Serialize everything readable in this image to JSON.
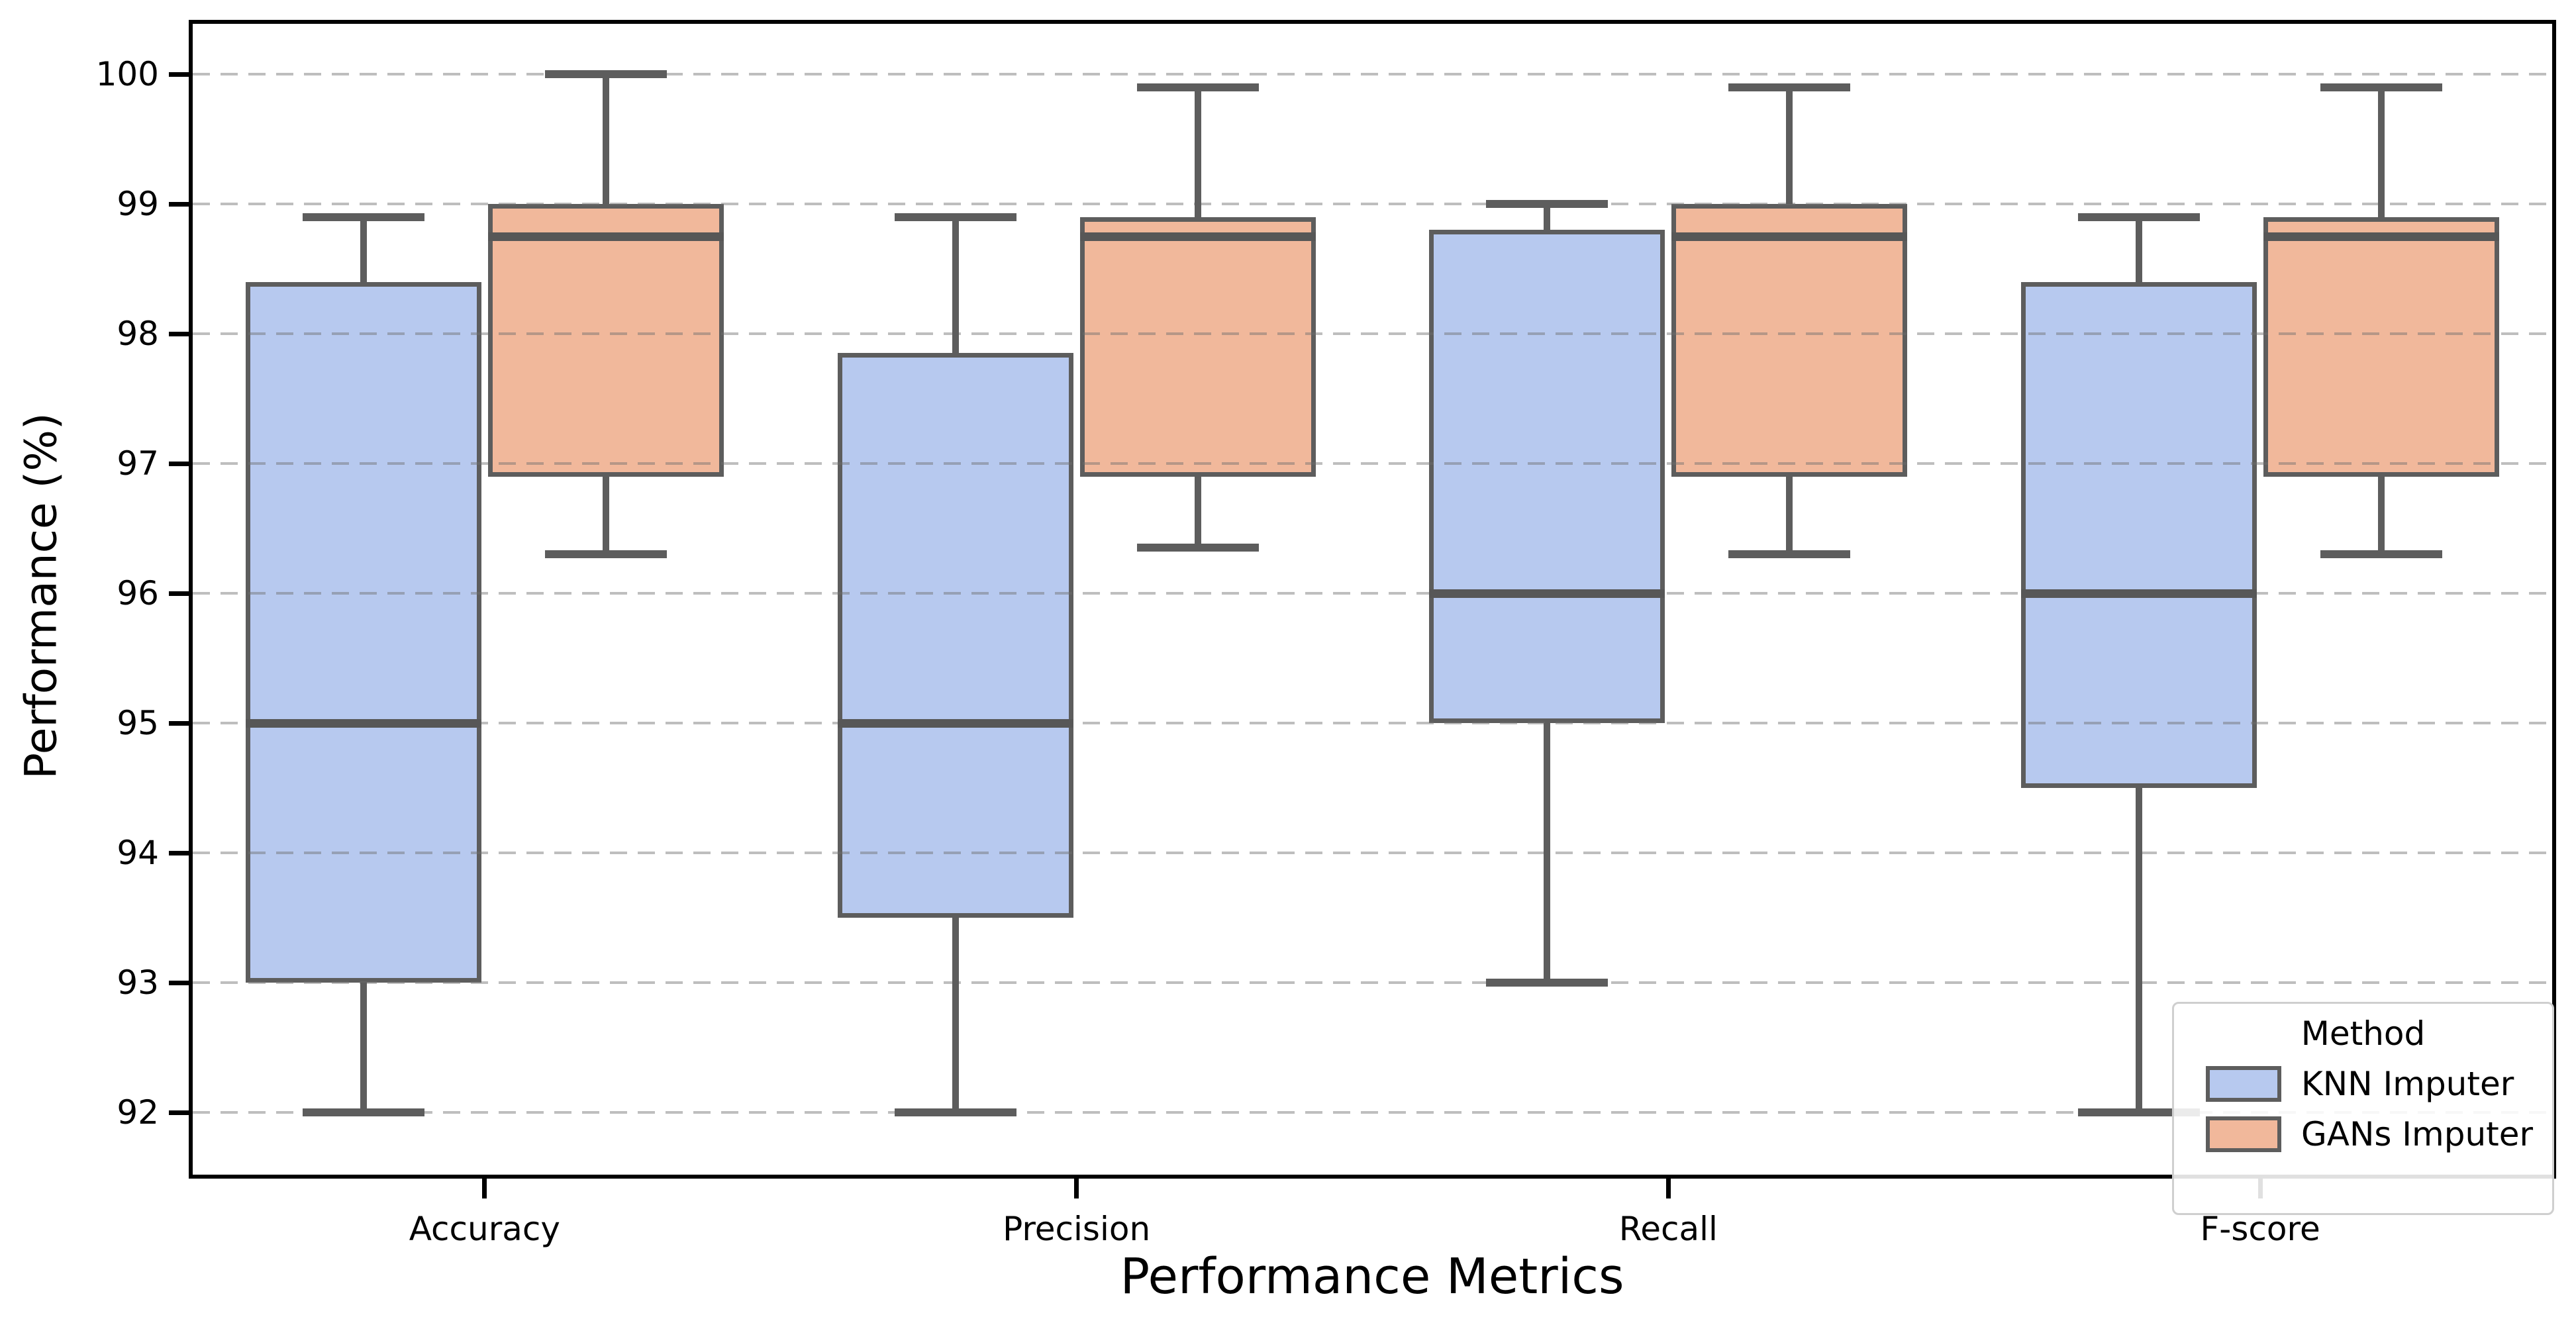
{
  "chart_data": {
    "type": "box",
    "title": "",
    "xlabel": "Performance Metrics",
    "ylabel": "Performance (%)",
    "categories": [
      "Accuracy",
      "Precision",
      "Recall",
      "F-score"
    ],
    "yticks": [
      100,
      99,
      98,
      97,
      96,
      95,
      94,
      93,
      92
    ],
    "ylim": [
      91.49,
      100.42
    ],
    "grid": "horizontal-dashed",
    "legend": {
      "title": "Method",
      "position": "lower right",
      "entries": [
        {
          "label": "KNN Imputer",
          "color": "#b7c9ef"
        },
        {
          "label": "GANs Imputer",
          "color": "#f1b89b"
        }
      ]
    },
    "series": [
      {
        "name": "KNN Imputer",
        "color": "#b7c9ef",
        "boxes": [
          {
            "category": "Accuracy",
            "whislo": 92.0,
            "q1": 93.0,
            "med": 95.0,
            "q3": 98.4,
            "whishi": 98.9
          },
          {
            "category": "Precision",
            "whislo": 92.0,
            "q1": 93.5,
            "med": 95.0,
            "q3": 97.85,
            "whishi": 98.9
          },
          {
            "category": "Recall",
            "whislo": 93.0,
            "q1": 95.0,
            "med": 96.0,
            "q3": 98.8,
            "whishi": 99.0
          },
          {
            "category": "F-score",
            "whislo": 92.0,
            "q1": 94.5,
            "med": 96.0,
            "q3": 98.4,
            "whishi": 98.9
          }
        ]
      },
      {
        "name": "GANs Imputer",
        "color": "#f1b89b",
        "boxes": [
          {
            "category": "Accuracy",
            "whislo": 96.3,
            "q1": 96.9,
            "med": 98.75,
            "q3": 99.0,
            "whishi": 100.0
          },
          {
            "category": "Precision",
            "whislo": 96.35,
            "q1": 96.9,
            "med": 98.75,
            "q3": 98.9,
            "whishi": 99.9
          },
          {
            "category": "Recall",
            "whislo": 96.3,
            "q1": 96.9,
            "med": 98.75,
            "q3": 99.0,
            "whishi": 99.9
          },
          {
            "category": "F-score",
            "whislo": 96.3,
            "q1": 96.9,
            "med": 98.75,
            "q3": 98.9,
            "whishi": 99.9
          }
        ]
      }
    ],
    "style": {
      "edge_color": "#5d5d5d",
      "median_color": "#575757",
      "grid_color": "#a8a8a8",
      "spine_color": "#000000",
      "background": "#ffffff"
    }
  }
}
